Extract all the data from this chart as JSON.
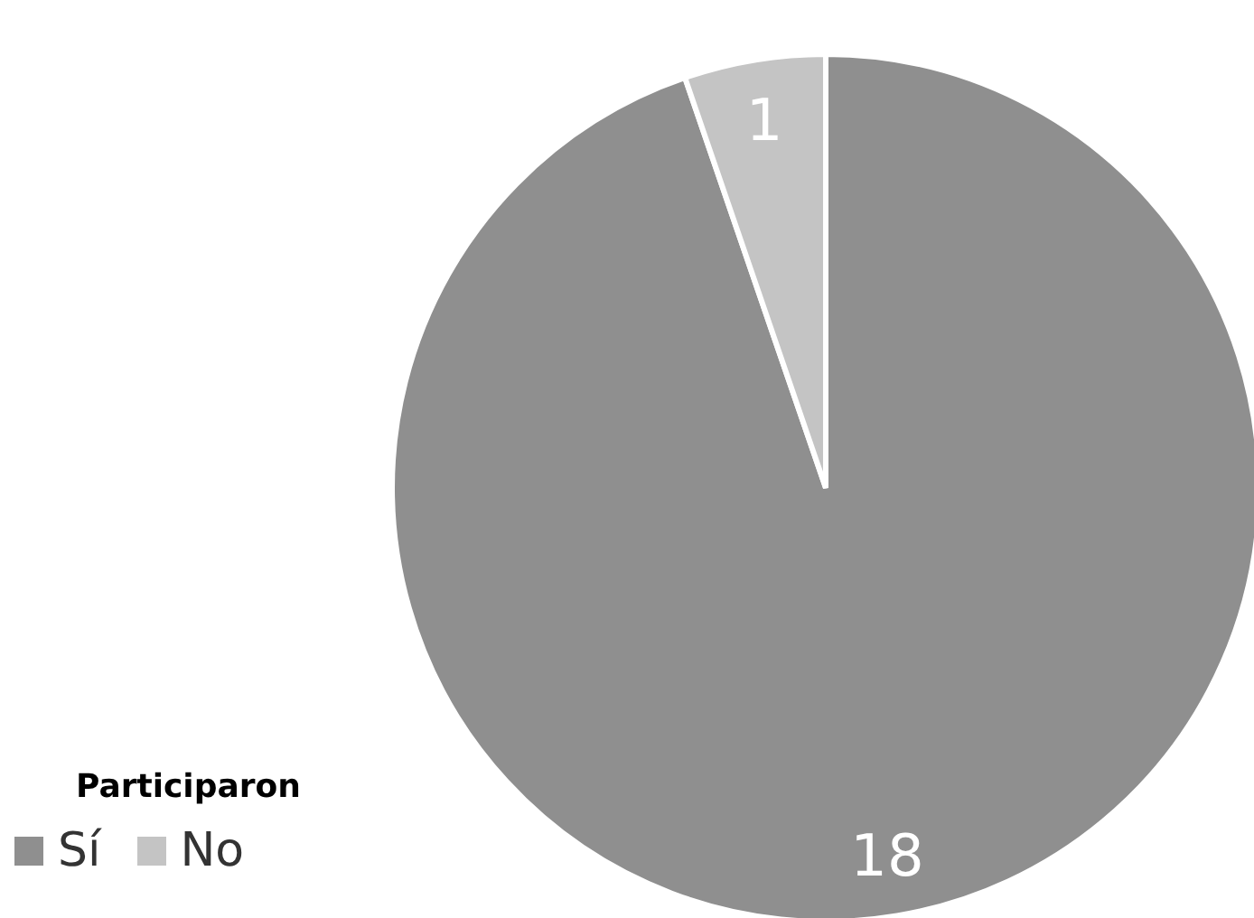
{
  "chart_data": {
    "type": "pie",
    "legend_title": "Participaron",
    "categories": [
      "Sí",
      "No"
    ],
    "values": [
      18,
      1
    ],
    "colors": [
      "#8f8f8f",
      "#c4c4c4"
    ],
    "data_labels": true,
    "legend": "bottom left"
  }
}
